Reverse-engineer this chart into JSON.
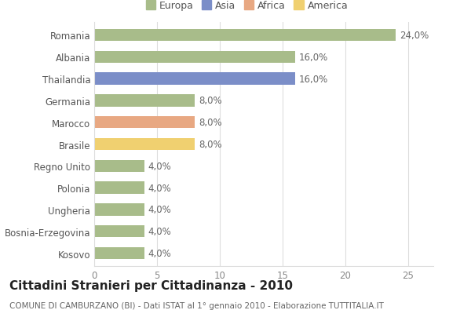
{
  "categories": [
    "Romania",
    "Albania",
    "Thailandia",
    "Germania",
    "Marocco",
    "Brasile",
    "Regno Unito",
    "Polonia",
    "Ungheria",
    "Bosnia-Erzegovina",
    "Kosovo"
  ],
  "values": [
    24.0,
    16.0,
    16.0,
    8.0,
    8.0,
    8.0,
    4.0,
    4.0,
    4.0,
    4.0,
    4.0
  ],
  "colors": [
    "#a8bc8a",
    "#a8bc8a",
    "#7b8ec8",
    "#a8bc8a",
    "#e8a882",
    "#f0d070",
    "#a8bc8a",
    "#a8bc8a",
    "#a8bc8a",
    "#a8bc8a",
    "#a8bc8a"
  ],
  "legend_labels": [
    "Europa",
    "Asia",
    "Africa",
    "America"
  ],
  "legend_colors": [
    "#a8bc8a",
    "#7b8ec8",
    "#e8a882",
    "#f0d070"
  ],
  "title": "Cittadini Stranieri per Cittadinanza - 2010",
  "subtitle": "COMUNE DI CAMBURZANO (BI) - Dati ISTAT al 1° gennaio 2010 - Elaborazione TUTTITALIA.IT",
  "xlim": [
    0,
    27
  ],
  "xticks": [
    0,
    5,
    10,
    15,
    20,
    25
  ],
  "bar_height": 0.55,
  "background_color": "#ffffff",
  "grid_color": "#dddddd",
  "label_fontsize": 8.5,
  "title_fontsize": 11,
  "subtitle_fontsize": 7.5
}
